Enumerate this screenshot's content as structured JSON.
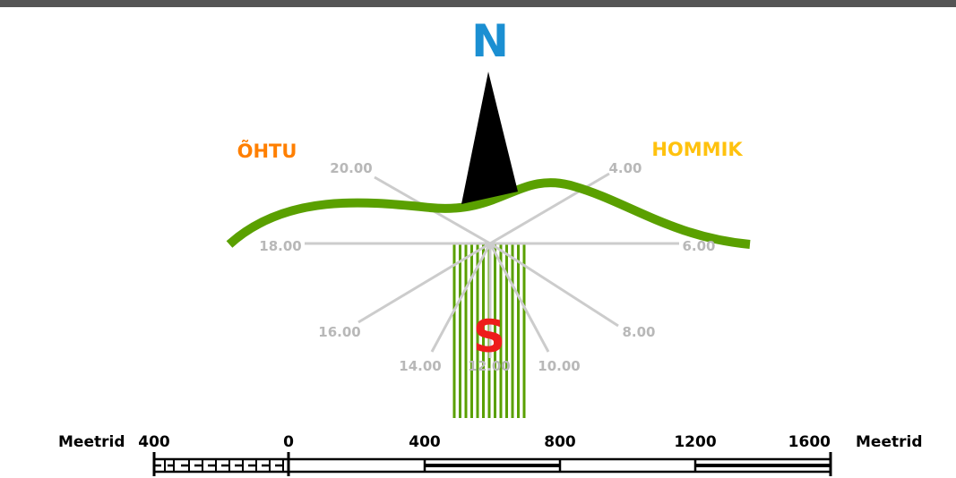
{
  "compass": {
    "north": "N",
    "south": "S",
    "west": "ÕHTU",
    "east": "HOMMIK"
  },
  "sun_hours": [
    "4.00",
    "6.00",
    "8.00",
    "10.00",
    "12.00",
    "14.00",
    "16.00",
    "18.00",
    "20.00"
  ],
  "scale_bar": {
    "unit_left": "Meetrid",
    "unit_right": "Meetrid",
    "ticks": [
      "400",
      "0",
      "400",
      "800",
      "1200",
      "1600"
    ]
  },
  "colors": {
    "north": "#1b8fd2",
    "south": "#ee1c1c",
    "west": "#ff7f00",
    "east": "#ffc20e",
    "terrain": "#5aa000",
    "hour_lines": "#cccccc",
    "hour_labels": "#b8b8b8",
    "needle": "#000000",
    "top_bar": "#555555"
  }
}
